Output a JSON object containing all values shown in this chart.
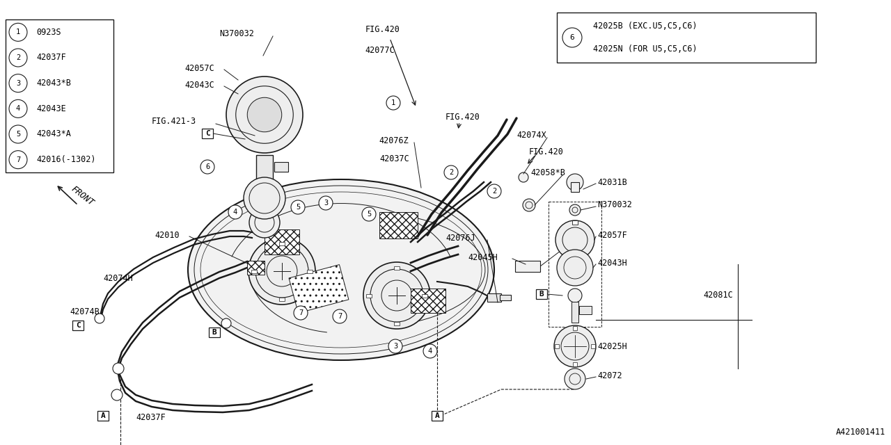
{
  "bg_color": "#ffffff",
  "line_color": "#1a1a1a",
  "fig_id": "A421001411",
  "parts_list": [
    {
      "num": "1",
      "code": "0923S"
    },
    {
      "num": "2",
      "code": "42037F"
    },
    {
      "num": "3",
      "code": "42043*B"
    },
    {
      "num": "4",
      "code": "42043E"
    },
    {
      "num": "5",
      "code": "42043*A"
    },
    {
      "num": "7",
      "code": "42016(-1302)"
    }
  ],
  "special_part": {
    "num": "6",
    "lines": [
      "42025B (EXC.U5,C5,C6)",
      "42025N (FOR U5,C5,C6)"
    ]
  }
}
